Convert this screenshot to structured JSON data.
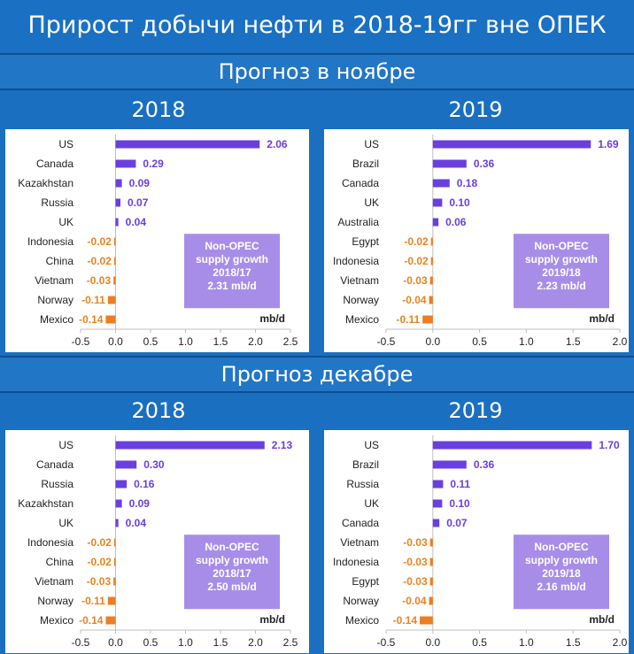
{
  "page": {
    "title": "Прирост добычи нефти в 2018-19гг вне ОПЕК",
    "section_november": "Прогноз в ноябре",
    "section_december": "Прогноз декабре"
  },
  "colors": {
    "positive": "#6a3fe0",
    "negative": "#ee7d22",
    "box": "#a88de8",
    "positive_label": "#6a3fe0",
    "negative_label": "#e8831f"
  },
  "chart_data": [
    {
      "type": "bar",
      "orientation": "horizontal",
      "year_label": "2018",
      "categories": [
        "US",
        "Canada",
        "Kazakhstan",
        "Russia",
        "UK",
        "Indonesia",
        "China",
        "Vietnam",
        "Norway",
        "Mexico"
      ],
      "values": [
        2.06,
        0.29,
        0.09,
        0.07,
        0.04,
        -0.02,
        -0.02,
        -0.03,
        -0.11,
        -0.14
      ],
      "value_labels": [
        "2.06",
        "0.29",
        "0.09",
        "0.07",
        "0.04",
        "-0.02",
        "-0.02",
        "-0.03",
        "-0.11",
        "-0.14"
      ],
      "xlim": [
        -0.5,
        2.5
      ],
      "xticks": [
        "-0.5",
        "0.0",
        "0.5",
        "1.0",
        "1.5",
        "2.0",
        "2.5"
      ],
      "xtick_values": [
        -0.5,
        0,
        0.5,
        1.0,
        1.5,
        2.0,
        2.5
      ],
      "unit_label": "mb/d",
      "box_lines": [
        "Non-OPEC",
        "supply growth",
        "2018/17",
        "2.31 mb/d"
      ]
    },
    {
      "type": "bar",
      "orientation": "horizontal",
      "year_label": "2019",
      "categories": [
        "US",
        "Brazil",
        "Canada",
        "UK",
        "Australia",
        "Egypt",
        "Indonesia",
        "Vietnam",
        "Norway",
        "Mexico"
      ],
      "values": [
        1.69,
        0.36,
        0.18,
        0.1,
        0.06,
        -0.02,
        -0.02,
        -0.03,
        -0.04,
        -0.11
      ],
      "value_labels": [
        "1.69",
        "0.36",
        "0.18",
        "0.10",
        "0.06",
        "-0.02",
        "-0.02",
        "-0.03",
        "-0.04",
        "-0.11"
      ],
      "xlim": [
        -0.5,
        2.0
      ],
      "xticks": [
        "-0.5",
        "0.0",
        "0.5",
        "1.0",
        "1.5",
        "2.0"
      ],
      "xtick_values": [
        -0.5,
        0,
        0.5,
        1.0,
        1.5,
        2.0
      ],
      "unit_label": "mb/d",
      "box_lines": [
        "Non-OPEC",
        "supply growth",
        "2019/18",
        "2.23 mb/d"
      ]
    },
    {
      "type": "bar",
      "orientation": "horizontal",
      "year_label": "2018",
      "categories": [
        "US",
        "Canada",
        "Russia",
        "Kazakhstan",
        "UK",
        "Indonesia",
        "China",
        "Vietnam",
        "Norway",
        "Mexico"
      ],
      "values": [
        2.13,
        0.3,
        0.16,
        0.09,
        0.04,
        -0.02,
        -0.02,
        -0.03,
        -0.11,
        -0.14
      ],
      "value_labels": [
        "2.13",
        "0.30",
        "0.16",
        "0.09",
        "0.04",
        "-0.02",
        "-0.02",
        "-0.03",
        "-0.11",
        "-0.14"
      ],
      "xlim": [
        -0.5,
        2.5
      ],
      "xticks": [
        "-0.5",
        "0.0",
        "0.5",
        "1.0",
        "1.5",
        "2.0",
        "2.5"
      ],
      "xtick_values": [
        -0.5,
        0,
        0.5,
        1.0,
        1.5,
        2.0,
        2.5
      ],
      "unit_label": "mb/d",
      "box_lines": [
        "Non-OPEC",
        "supply growth",
        "2018/17",
        "2.50 mb/d"
      ]
    },
    {
      "type": "bar",
      "orientation": "horizontal",
      "year_label": "2019",
      "categories": [
        "US",
        "Brazil",
        "Russia",
        "UK",
        "Canada",
        "Vietnam",
        "Indonesia",
        "Egypt",
        "Norway",
        "Mexico"
      ],
      "values": [
        1.7,
        0.36,
        0.11,
        0.1,
        0.07,
        -0.03,
        -0.03,
        -0.03,
        -0.04,
        -0.14
      ],
      "value_labels": [
        "1.70",
        "0.36",
        "0.11",
        "0.10",
        "0.07",
        "-0.03",
        "-0.03",
        "-0.03",
        "-0.04",
        "-0.14"
      ],
      "xlim": [
        -0.5,
        2.0
      ],
      "xticks": [
        "-0.5",
        "0.0",
        "0.5",
        "1.0",
        "1.5",
        "2.0"
      ],
      "xtick_values": [
        -0.5,
        0,
        0.5,
        1.0,
        1.5,
        2.0
      ],
      "unit_label": "mb/d",
      "box_lines": [
        "Non-OPEC",
        "supply growth",
        "2019/18",
        "2.16 mb/d"
      ]
    }
  ]
}
